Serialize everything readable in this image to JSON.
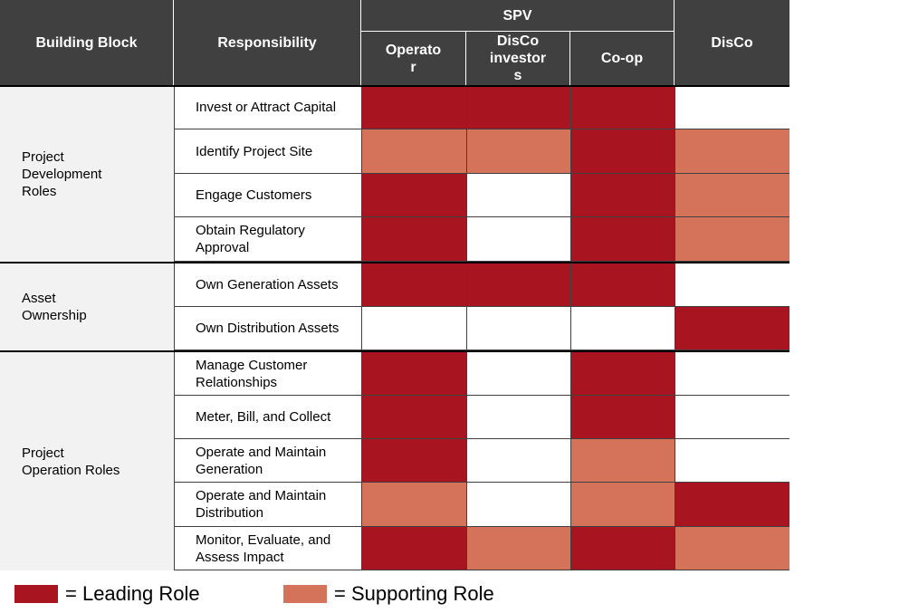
{
  "headers": {
    "building_block": "Building Block",
    "responsibility": "Responsibility",
    "spv": "SPV",
    "operator": "Operato\nr",
    "disco_investors": "DisCo\ninvestor\ns",
    "coop": "Co-op",
    "disco": "DisCo"
  },
  "colors": {
    "leading": "#a8141f",
    "supporting": "#d4725a",
    "none": "#ffffff",
    "header": "#404040"
  },
  "blocks": [
    {
      "label": "Project Development Roles",
      "rows": [
        0,
        1,
        2,
        3
      ]
    },
    {
      "label": "Asset Ownership",
      "rows": [
        4,
        5
      ]
    },
    {
      "label": "Project Operation Roles",
      "rows": [
        6,
        7,
        8,
        9,
        10
      ]
    }
  ],
  "rows": [
    {
      "responsibility": "Invest or Attract Capital",
      "roles": [
        "L",
        "L",
        "L",
        "N"
      ]
    },
    {
      "responsibility": "Identify Project Site",
      "roles": [
        "S",
        "S",
        "L",
        "S"
      ]
    },
    {
      "responsibility": "Engage Customers",
      "roles": [
        "L",
        "N",
        "L",
        "S"
      ]
    },
    {
      "responsibility": "Obtain Regulatory Approval",
      "roles": [
        "L",
        "N",
        "L",
        "S"
      ]
    },
    {
      "responsibility": "Own Generation Assets",
      "roles": [
        "L",
        "L",
        "L",
        "N"
      ]
    },
    {
      "responsibility": "Own Distribution Assets",
      "roles": [
        "N",
        "N",
        "N",
        "L"
      ]
    },
    {
      "responsibility": "Manage Customer Relationships",
      "roles": [
        "L",
        "N",
        "L",
        "N"
      ]
    },
    {
      "responsibility": "Meter, Bill, and Collect",
      "roles": [
        "L",
        "N",
        "L",
        "N"
      ]
    },
    {
      "responsibility": "Operate and Maintain Generation",
      "roles": [
        "L",
        "N",
        "S",
        "N"
      ]
    },
    {
      "responsibility": "Operate and Maintain Distribution",
      "roles": [
        "S",
        "N",
        "S",
        "L"
      ]
    },
    {
      "responsibility": "Monitor, Evaluate, and Assess Impact",
      "roles": [
        "L",
        "S",
        "L",
        "S"
      ]
    }
  ],
  "legend": {
    "leading": "= Leading Role",
    "supporting": "= Supporting Role"
  }
}
